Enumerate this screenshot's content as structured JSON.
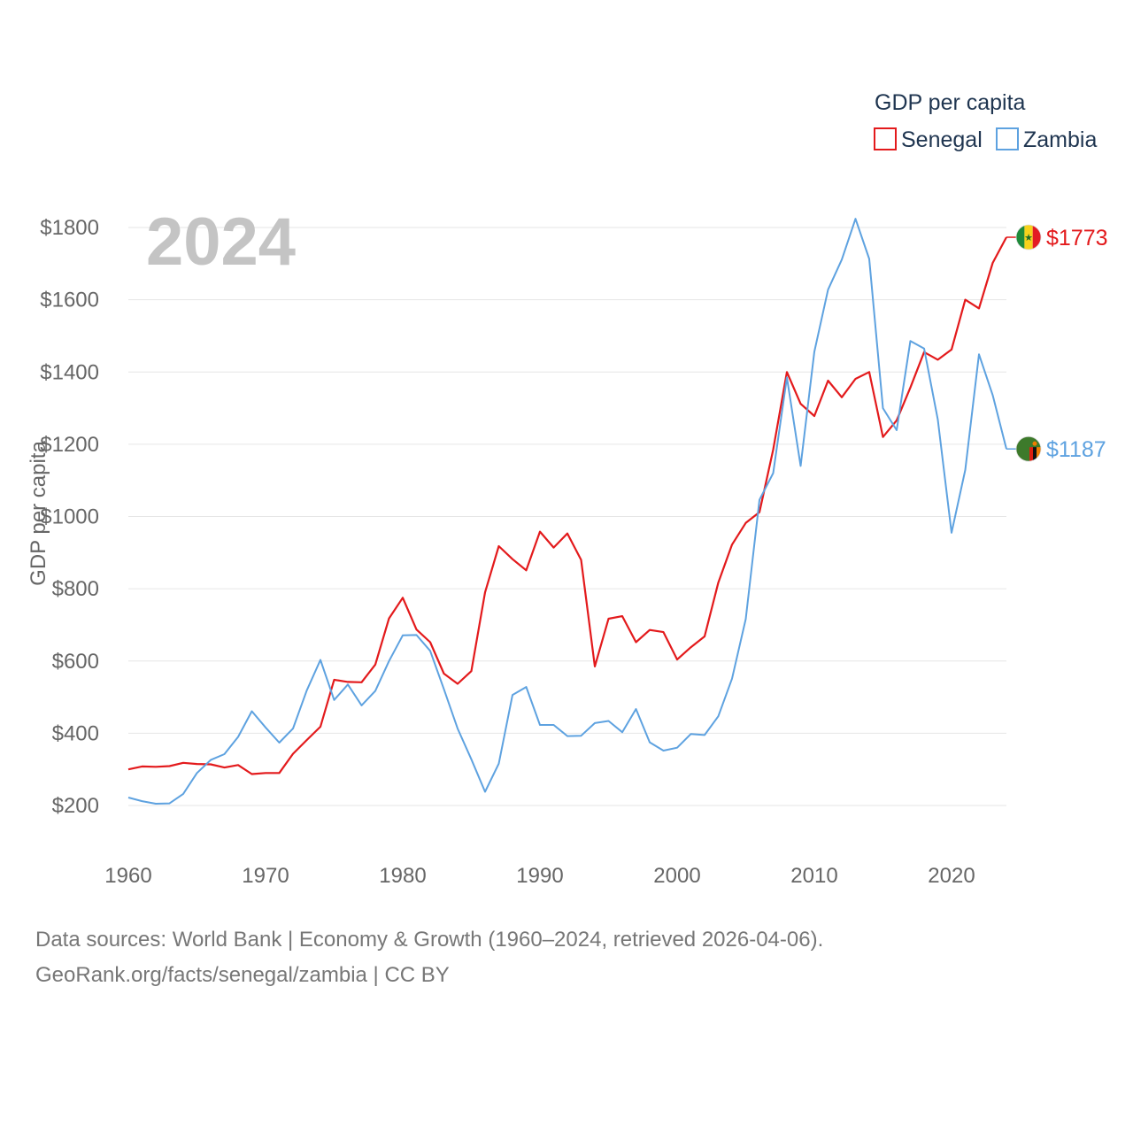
{
  "chart_data": {
    "type": "line",
    "current_year": "2024",
    "ylabel": "GDP per capita",
    "xlabel": "",
    "xlim": [
      1960,
      2024
    ],
    "ylim": [
      50,
      1900
    ],
    "y_ticks": [
      200,
      400,
      600,
      800,
      1000,
      1200,
      1400,
      1600,
      1800
    ],
    "y_tick_labels": [
      "$200",
      "$400",
      "$600",
      "$800",
      "$1000",
      "$1200",
      "$1400",
      "$1600",
      "$1800"
    ],
    "x_ticks": [
      1960,
      1970,
      1980,
      1990,
      2000,
      2010,
      2020
    ],
    "x_tick_labels": [
      "1960",
      "1970",
      "1980",
      "1990",
      "2000",
      "2010",
      "2020"
    ],
    "grid": true,
    "legend": {
      "title": "GDP per capita",
      "position": "top-right"
    },
    "years": [
      1960,
      1961,
      1962,
      1963,
      1964,
      1965,
      1966,
      1967,
      1968,
      1969,
      1970,
      1971,
      1972,
      1973,
      1974,
      1975,
      1976,
      1977,
      1978,
      1979,
      1980,
      1981,
      1982,
      1983,
      1984,
      1985,
      1986,
      1987,
      1988,
      1989,
      1990,
      1991,
      1992,
      1993,
      1994,
      1995,
      1996,
      1997,
      1998,
      1999,
      2000,
      2001,
      2002,
      2003,
      2004,
      2005,
      2006,
      2007,
      2008,
      2009,
      2010,
      2011,
      2012,
      2013,
      2014,
      2015,
      2016,
      2017,
      2018,
      2019,
      2020,
      2021,
      2022,
      2023,
      2024
    ],
    "series": [
      {
        "name": "Senegal",
        "color": "#e31a1c",
        "end_label": "$1773",
        "flag": "senegal-flag",
        "values": [
          300,
          308,
          307,
          309,
          318,
          315,
          314,
          305,
          312,
          287,
          290,
          290,
          343,
          381,
          418,
          548,
          542,
          541,
          590,
          718,
          775,
          687,
          652,
          565,
          537,
          572,
          790,
          918,
          882,
          851,
          958,
          914,
          953,
          880,
          585,
          717,
          724,
          652,
          686,
          680,
          604,
          638,
          668,
          817,
          922,
          982,
          1012,
          1185,
          1400,
          1312,
          1278,
          1376,
          1330,
          1381,
          1400,
          1220,
          1266,
          1357,
          1455,
          1434,
          1462,
          1600,
          1576,
          1702,
          1773
        ]
      },
      {
        "name": "Zambia",
        "color": "#5ea2e0",
        "end_label": "$1187",
        "flag": "zambia-flag",
        "values": [
          222,
          212,
          205,
          206,
          232,
          290,
          326,
          342,
          390,
          461,
          416,
          374,
          413,
          518,
          603,
          492,
          535,
          477,
          517,
          600,
          671,
          672,
          628,
          522,
          413,
          328,
          238,
          316,
          506,
          528,
          423,
          423,
          392,
          393,
          428,
          434,
          403,
          467,
          375,
          352,
          360,
          398,
          395,
          447,
          551,
          716,
          1046,
          1120,
          1385,
          1140,
          1456,
          1628,
          1711,
          1824,
          1713,
          1300,
          1239,
          1486,
          1465,
          1268,
          955,
          1129,
          1449,
          1336,
          1187
        ]
      }
    ]
  },
  "footer": {
    "sources": "Data sources: World Bank | Economy & Growth (1960–2024, retrieved 2026-04-06).",
    "credit": "GeoRank.org/facts/senegal/zambia | CC BY"
  }
}
